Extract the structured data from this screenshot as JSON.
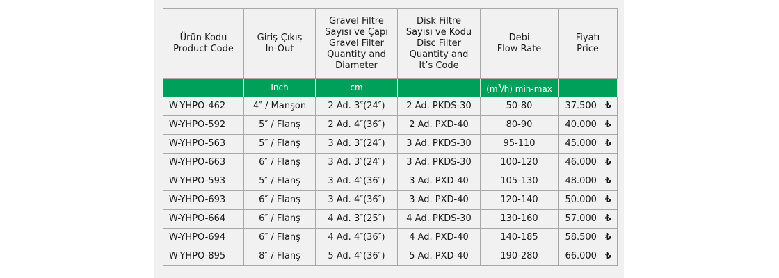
{
  "colors": {
    "header_band": "#00a05a",
    "panel": "#f1f1f1",
    "border": "#a8a8a8"
  },
  "headers": [
    [
      "Ürün Kodu",
      "Product Code"
    ],
    [
      "Giriş-Çıkış",
      "In-Out"
    ],
    [
      "Gravel Filtre",
      "Sayısı ve Çapı",
      "Gravel Filter",
      "Quantity and",
      "Diameter"
    ],
    [
      "Disk Filtre",
      "Sayısı ve Kodu",
      "Disc Filter",
      "Quantity and",
      "It’s Code"
    ],
    [
      "Debi",
      "Flow Rate"
    ],
    [
      "Fiyatı",
      "Price"
    ]
  ],
  "units": {
    "inout": "Inch",
    "gravel": "cm",
    "flow_pre": "(m",
    "flow_sup": "3",
    "flow_post": "/h) min-max"
  },
  "currency_symbol": "₺",
  "rows": [
    {
      "code": "W-YHPO-462",
      "inout": "4″ / Manşon",
      "gravel": "2 Ad. 3″(24″)",
      "disc": "2 Ad. PKDS-30",
      "flow": "50-80",
      "price": "37.500"
    },
    {
      "code": "W-YHPO-592",
      "inout": "5″ / Flanş",
      "gravel": "2 Ad. 4″(36″)",
      "disc": "2 Ad. PXD-40",
      "flow": "80-90",
      "price": "40.000"
    },
    {
      "code": "W-YHPO-563",
      "inout": "5″ / Flanş",
      "gravel": "3 Ad. 3″(24″)",
      "disc": "3 Ad. PKDS-30",
      "flow": "95-110",
      "price": "45.000"
    },
    {
      "code": "W-YHPO-663",
      "inout": "6″ / Flanş",
      "gravel": "3 Ad. 3″(24″)",
      "disc": "3 Ad. PKDS-30",
      "flow": "100-120",
      "price": "46.000"
    },
    {
      "code": "W-YHPO-593",
      "inout": "5″ / Flanş",
      "gravel": "3 Ad. 4″(36″)",
      "disc": "3 Ad. PXD-40",
      "flow": "105-130",
      "price": "48.000"
    },
    {
      "code": "W-YHPO-693",
      "inout": "6″ / Flanş",
      "gravel": "3 Ad. 4″(36″)",
      "disc": "3 Ad. PXD-40",
      "flow": "120-140",
      "price": "50.000"
    },
    {
      "code": "W-YHPO-664",
      "inout": "6″ / Flanş",
      "gravel": "4 Ad. 3″(25″)",
      "disc": "4 Ad. PKDS-30",
      "flow": "130-160",
      "price": "57.000"
    },
    {
      "code": "W-YHPO-694",
      "inout": "6″ / Flanş",
      "gravel": "4 Ad. 4″(36″)",
      "disc": "4 Ad. PXD-40",
      "flow": "140-185",
      "price": "58.500"
    },
    {
      "code": "W-YHPO-895",
      "inout": "8″ / Flanş",
      "gravel": "5 Ad. 4″(36″)",
      "disc": "5 Ad. PXD-40",
      "flow": "190-280",
      "price": "66.000"
    }
  ]
}
